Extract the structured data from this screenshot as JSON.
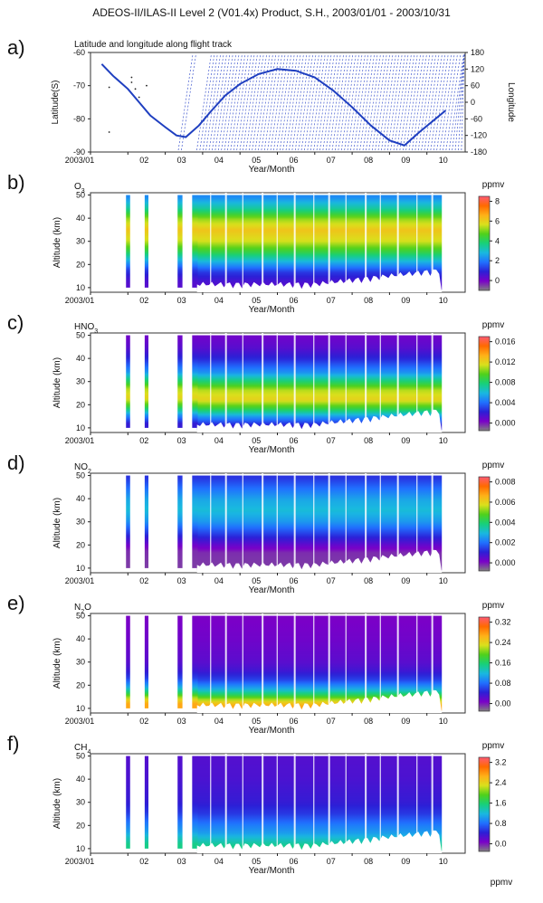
{
  "title": "ADEOS-II/ILAS-II Level 2 (V01.4x) Product, S.H., 2003/01/01 - 2003/10/31",
  "x_ticks": [
    "2003/01",
    "02",
    "03",
    "04",
    "05",
    "06",
    "07",
    "08",
    "09",
    "10"
  ],
  "x_label": "Year/Month",
  "chart_data": [
    {
      "type": "line",
      "panel_letter": "a)",
      "title": "Latitude and longitude along flight track",
      "ylabel": "Latitude(S)",
      "ylabel_right": "Longitude",
      "ylim": [
        -90,
        -60
      ],
      "ylim_right": [
        -180,
        180
      ],
      "y_ticks": [
        "-60",
        "-70",
        "-80",
        "-90"
      ],
      "y_ticks_right": [
        "180",
        "120",
        "60",
        "0",
        "-60",
        "-120",
        "-180"
      ],
      "series": [
        {
          "x_month": [
            1.3,
            1.6,
            2.0,
            2.3,
            2.6,
            3.0,
            3.3,
            3.55,
            3.9,
            4.2,
            4.6,
            5.0,
            5.5,
            6.0,
            6.5,
            7.0,
            7.5,
            8.0,
            8.5,
            9.0,
            9.4,
            9.8,
            10.5
          ],
          "latitude": [
            -63.5,
            -67,
            -71,
            -75,
            -79,
            -82.5,
            -85,
            -85.5,
            -82,
            -78,
            -73,
            -69.5,
            -66.5,
            -65,
            -65.5,
            -67.5,
            -71.5,
            -76.5,
            -82,
            -86.5,
            -88,
            -84,
            -77.5
          ]
        }
      ]
    },
    {
      "type": "heatmap",
      "panel_letter": "b)",
      "species": "O",
      "species_sub": "3",
      "ylabel": "Altitude (km)",
      "ylim": [
        8,
        51
      ],
      "y_ticks": [
        "50",
        "40",
        "30",
        "20",
        "10"
      ],
      "units": "ppmv",
      "colorbar_ticks": [
        "8",
        "6",
        "4",
        "2",
        "0"
      ],
      "colorbar_range": [
        -1,
        8.5
      ],
      "profile": [
        [
          10,
          0.4
        ],
        [
          12,
          0.6
        ],
        [
          16,
          1.2
        ],
        [
          20,
          2.5
        ],
        [
          25,
          4.2
        ],
        [
          30,
          5.6
        ],
        [
          35,
          6.2
        ],
        [
          40,
          5.2
        ],
        [
          45,
          3.4
        ],
        [
          50,
          2.2
        ]
      ]
    },
    {
      "type": "heatmap",
      "panel_letter": "c)",
      "species": "HNO",
      "species_sub": "3",
      "ylabel": "Altitude (km)",
      "ylim": [
        8,
        51
      ],
      "y_ticks": [
        "50",
        "40",
        "30",
        "20",
        "10"
      ],
      "units": "ppmv",
      "colorbar_ticks": [
        "0.016",
        "0.012",
        "0.008",
        "0.004",
        "0.000"
      ],
      "colorbar_range": [
        -0.0015,
        0.017
      ],
      "profile": [
        [
          10,
          0.002
        ],
        [
          14,
          0.005
        ],
        [
          18,
          0.009
        ],
        [
          22,
          0.012
        ],
        [
          26,
          0.011
        ],
        [
          30,
          0.008
        ],
        [
          34,
          0.005
        ],
        [
          40,
          0.0025
        ],
        [
          45,
          0.0012
        ],
        [
          50,
          0.0006
        ]
      ]
    },
    {
      "type": "heatmap",
      "panel_letter": "d)",
      "species": "NO",
      "species_sub": "2",
      "ylabel": "Altitude (km)",
      "ylim": [
        8,
        51
      ],
      "y_ticks": [
        "50",
        "40",
        "30",
        "20",
        "10"
      ],
      "units": "ppmv",
      "colorbar_ticks": [
        "0.008",
        "0.006",
        "0.004",
        "0.002",
        "0.000"
      ],
      "colorbar_range": [
        -0.0008,
        0.0085
      ],
      "profile": [
        [
          10,
          -0.0003
        ],
        [
          16,
          -0.0002
        ],
        [
          20,
          0.0005
        ],
        [
          25,
          0.0015
        ],
        [
          30,
          0.0025
        ],
        [
          35,
          0.003
        ],
        [
          40,
          0.0027
        ],
        [
          45,
          0.002
        ],
        [
          50,
          0.0013
        ]
      ]
    },
    {
      "type": "heatmap",
      "panel_letter": "e)",
      "species": "N",
      "species_sub": "2",
      "species_suffix": "O",
      "ylabel": "Altitude (km)",
      "ylim": [
        8,
        51
      ],
      "y_ticks": [
        "50",
        "40",
        "30",
        "20",
        "10"
      ],
      "units": "ppmv",
      "colorbar_ticks": [
        "0.32",
        "0.24",
        "0.16",
        "0.08",
        "0.00"
      ],
      "colorbar_range": [
        -0.03,
        0.34
      ],
      "profile": [
        [
          10,
          0.27
        ],
        [
          12,
          0.24
        ],
        [
          15,
          0.17
        ],
        [
          18,
          0.11
        ],
        [
          22,
          0.06
        ],
        [
          26,
          0.035
        ],
        [
          30,
          0.022
        ],
        [
          40,
          0.012
        ],
        [
          50,
          0.006
        ]
      ]
    },
    {
      "type": "heatmap",
      "panel_letter": "f)",
      "species": "CH",
      "species_sub": "4",
      "ylabel": "Altitude (km)",
      "ylim": [
        8,
        51
      ],
      "y_ticks": [
        "50",
        "40",
        "30",
        "20",
        "10"
      ],
      "units": "ppmv",
      "colorbar_ticks": [
        "3.2",
        "2.4",
        "1.6",
        "0.8",
        "0.0"
      ],
      "colorbar_range": [
        -0.3,
        3.4
      ],
      "profile": [
        [
          10,
          1.5
        ],
        [
          13,
          1.3
        ],
        [
          16,
          1.05
        ],
        [
          20,
          0.85
        ],
        [
          25,
          0.55
        ],
        [
          30,
          0.4
        ],
        [
          40,
          0.3
        ],
        [
          50,
          0.25
        ]
      ]
    }
  ],
  "footer_units": "ppmv",
  "colors": {
    "track_line": "#1f3fc0",
    "colormap": [
      "#808080",
      "#7a00c8",
      "#2c1fd6",
      "#2070ff",
      "#19b8e0",
      "#17d07a",
      "#4fd11b",
      "#d9e01c",
      "#ffb018",
      "#ff6a00",
      "#ff5a74"
    ]
  }
}
